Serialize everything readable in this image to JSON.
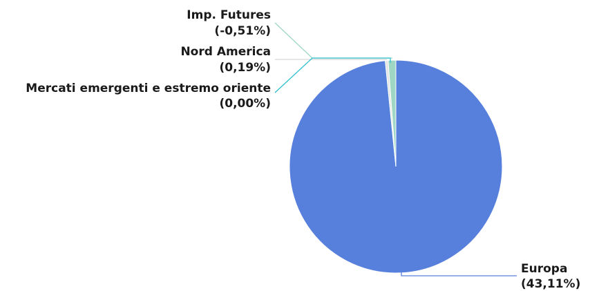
{
  "chart_data": {
    "type": "pie",
    "title": "",
    "slices": [
      {
        "label": "Europa",
        "value_text": "(43,11%)",
        "value": 43.11,
        "color": "#577fdc"
      },
      {
        "label": "Imp. Futures",
        "value_text": "(-0,51%)",
        "value": -0.51,
        "color": "#9fd6c4"
      },
      {
        "label": "Nord America",
        "value_text": "(0,19%)",
        "value": 0.19,
        "color": "#e4e4e4"
      },
      {
        "label": "Mercati emergenti e estremo oriente",
        "value_text": "(0,00%)",
        "value": 0.0,
        "color": "#2dbfd0"
      }
    ]
  }
}
